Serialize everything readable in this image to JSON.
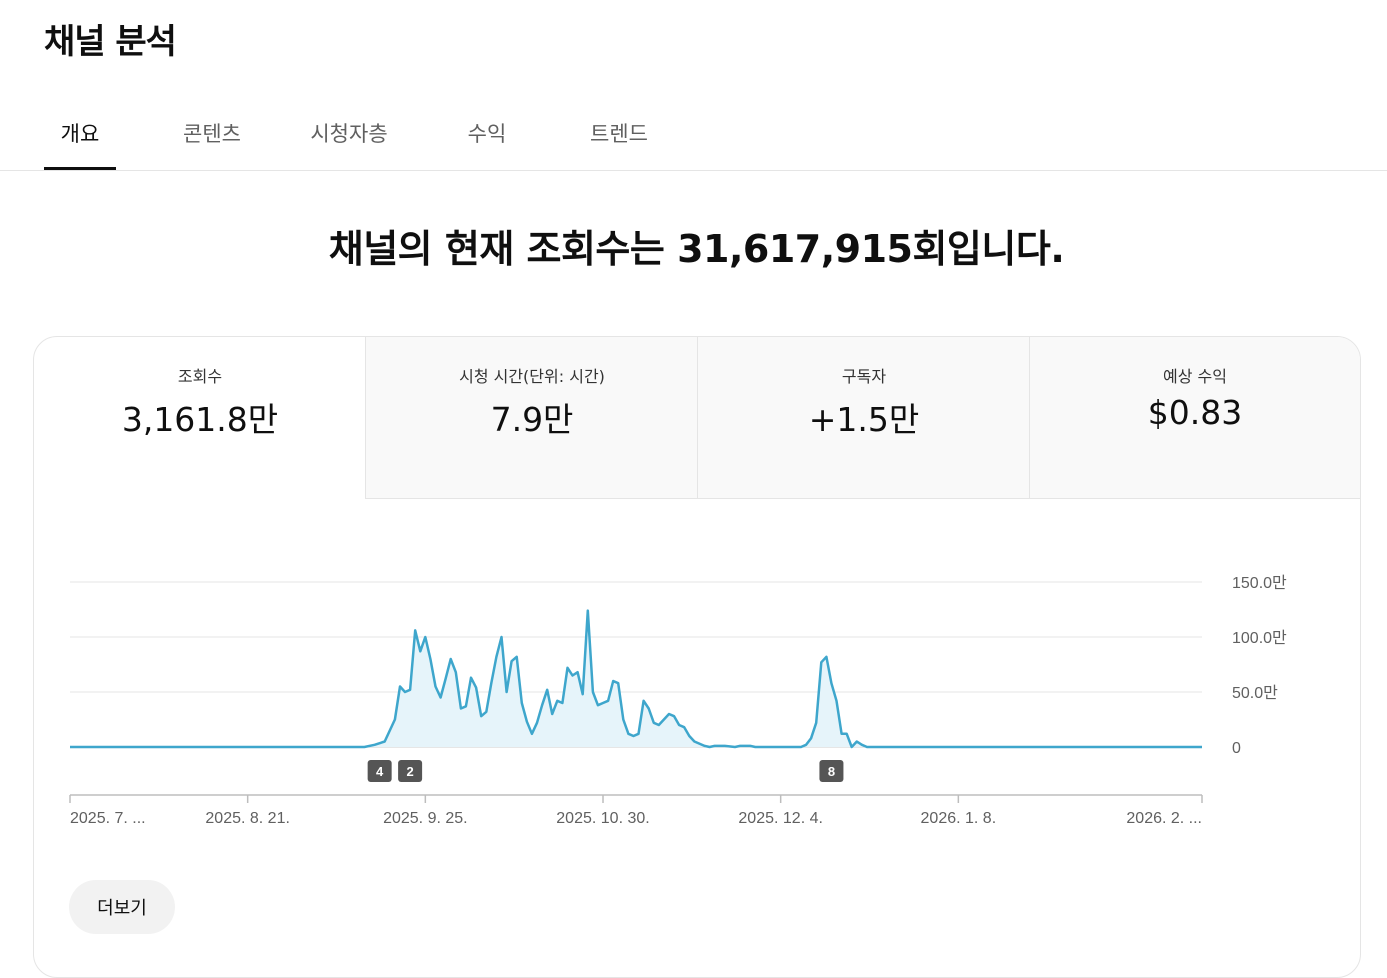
{
  "header": {
    "title": "채널 분석"
  },
  "tabs": [
    {
      "label": "개요",
      "active": true
    },
    {
      "label": "콘텐츠"
    },
    {
      "label": "시청자층"
    },
    {
      "label": "수익"
    },
    {
      "label": "트렌드"
    }
  ],
  "headline": "채널의 현재 조회수는 31,617,915회입니다.",
  "metrics": [
    {
      "label": "조회수",
      "value": "3,161.8만"
    },
    {
      "label": "시청 시간(단위: 시간)",
      "value": "7.9만"
    },
    {
      "label": "구독자",
      "value": "+1.5만"
    },
    {
      "label": "예상 수익",
      "value": "$0.83"
    }
  ],
  "colors": {
    "line": "#3ea6cc",
    "area": "#e6f4fa",
    "marker": "#555555"
  },
  "more_button": "더보기",
  "chart_data": {
    "type": "area",
    "y_unit": "만",
    "ylim": [
      0,
      150
    ],
    "y_ticks": [
      0,
      50,
      100,
      150
    ],
    "y_tick_labels": [
      "0",
      "50.0만",
      "100.0만",
      "150.0만"
    ],
    "x_range": [
      "2025-07-17",
      "2026-02-25"
    ],
    "x_tick_labels": [
      {
        "date": "2025-07-17",
        "label": "2025. 7. ..."
      },
      {
        "date": "2025-08-21",
        "label": "2025. 8. 21."
      },
      {
        "date": "2025-09-25",
        "label": "2025. 9. 25."
      },
      {
        "date": "2025-10-30",
        "label": "2025. 10. 30."
      },
      {
        "date": "2025-12-04",
        "label": "2025. 12. 4."
      },
      {
        "date": "2026-01-08",
        "label": "2026. 1. 8."
      },
      {
        "date": "2026-02-25",
        "label": "2026. 2. ..."
      }
    ],
    "markers": [
      {
        "date": "2025-09-16",
        "label": "4"
      },
      {
        "date": "2025-09-22",
        "label": "2"
      },
      {
        "date": "2025-12-14",
        "label": "8"
      }
    ],
    "series": [
      {
        "points": [
          [
            "2025-07-17",
            0
          ],
          [
            "2025-09-13",
            0
          ],
          [
            "2025-09-15",
            2
          ],
          [
            "2025-09-17",
            5
          ],
          [
            "2025-09-19",
            25
          ],
          [
            "2025-09-20",
            55
          ],
          [
            "2025-09-21",
            50
          ],
          [
            "2025-09-22",
            52
          ],
          [
            "2025-09-23",
            106
          ],
          [
            "2025-09-24",
            87
          ],
          [
            "2025-09-25",
            100
          ],
          [
            "2025-09-26",
            80
          ],
          [
            "2025-09-27",
            55
          ],
          [
            "2025-09-28",
            45
          ],
          [
            "2025-09-29",
            62
          ],
          [
            "2025-09-30",
            80
          ],
          [
            "2025-10-01",
            68
          ],
          [
            "2025-10-02",
            35
          ],
          [
            "2025-10-03",
            37
          ],
          [
            "2025-10-04",
            63
          ],
          [
            "2025-10-05",
            54
          ],
          [
            "2025-10-06",
            28
          ],
          [
            "2025-10-07",
            32
          ],
          [
            "2025-10-08",
            58
          ],
          [
            "2025-10-09",
            82
          ],
          [
            "2025-10-10",
            100
          ],
          [
            "2025-10-11",
            50
          ],
          [
            "2025-10-12",
            78
          ],
          [
            "2025-10-13",
            82
          ],
          [
            "2025-10-14",
            40
          ],
          [
            "2025-10-15",
            23
          ],
          [
            "2025-10-16",
            12
          ],
          [
            "2025-10-17",
            22
          ],
          [
            "2025-10-18",
            38
          ],
          [
            "2025-10-19",
            52
          ],
          [
            "2025-10-20",
            30
          ],
          [
            "2025-10-21",
            42
          ],
          [
            "2025-10-22",
            40
          ],
          [
            "2025-10-23",
            72
          ],
          [
            "2025-10-24",
            65
          ],
          [
            "2025-10-25",
            68
          ],
          [
            "2025-10-26",
            48
          ],
          [
            "2025-10-27",
            124
          ],
          [
            "2025-10-28",
            50
          ],
          [
            "2025-10-29",
            38
          ],
          [
            "2025-10-30",
            40
          ],
          [
            "2025-10-31",
            42
          ],
          [
            "2025-11-01",
            60
          ],
          [
            "2025-11-02",
            58
          ],
          [
            "2025-11-03",
            25
          ],
          [
            "2025-11-04",
            12
          ],
          [
            "2025-11-05",
            10
          ],
          [
            "2025-11-06",
            12
          ],
          [
            "2025-11-07",
            42
          ],
          [
            "2025-11-08",
            35
          ],
          [
            "2025-11-09",
            22
          ],
          [
            "2025-11-10",
            20
          ],
          [
            "2025-11-12",
            30
          ],
          [
            "2025-11-13",
            28
          ],
          [
            "2025-11-14",
            20
          ],
          [
            "2025-11-15",
            18
          ],
          [
            "2025-11-16",
            10
          ],
          [
            "2025-11-17",
            5
          ],
          [
            "2025-11-19",
            1
          ],
          [
            "2025-11-20",
            0
          ],
          [
            "2025-11-21",
            1
          ],
          [
            "2025-11-23",
            1
          ],
          [
            "2025-11-25",
            0
          ],
          [
            "2025-11-26",
            1
          ],
          [
            "2025-11-28",
            1
          ],
          [
            "2025-11-29",
            0
          ],
          [
            "2025-12-08",
            0
          ],
          [
            "2025-12-09",
            2
          ],
          [
            "2025-12-10",
            8
          ],
          [
            "2025-12-11",
            22
          ],
          [
            "2025-12-12",
            77
          ],
          [
            "2025-12-13",
            82
          ],
          [
            "2025-12-14",
            58
          ],
          [
            "2025-12-15",
            42
          ],
          [
            "2025-12-16",
            12
          ],
          [
            "2025-12-17",
            12
          ],
          [
            "2025-12-18",
            0
          ],
          [
            "2025-12-19",
            5
          ],
          [
            "2025-12-20",
            2
          ],
          [
            "2025-12-21",
            0
          ],
          [
            "2026-02-25",
            0
          ]
        ]
      }
    ]
  }
}
